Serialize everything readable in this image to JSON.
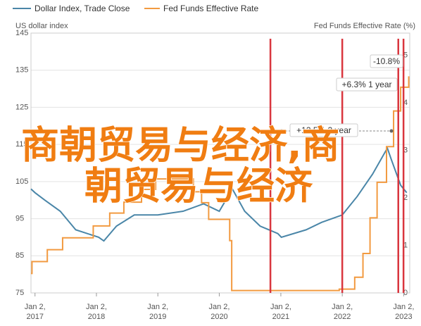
{
  "chart_data": {
    "type": "line",
    "legend": [
      "Dollar Index, Trade Close",
      "Fed Funds Effective Rate"
    ],
    "y_label": "US dollar index",
    "y2_label": "Fed Funds Effective Rate (%)",
    "xlim": [
      "2016-12-09",
      "2023-02-07"
    ],
    "xticks": [
      {
        "value": "2017-01-02",
        "label": "Jan 2, 2017"
      },
      {
        "value": "2018-01-02",
        "label": "Jan 2, 2018"
      },
      {
        "value": "2019-01-02",
        "label": "Jan 2, 2019"
      },
      {
        "value": "2020-01-02",
        "label": "Jan 2, 2020"
      },
      {
        "value": "2021-01-02",
        "label": "Jan 2, 2021"
      },
      {
        "value": "2022-01-02",
        "label": "Jan 2, 2022"
      },
      {
        "value": "2023-01-02",
        "label": "Jan 2, 2023"
      }
    ],
    "ylim": [
      75,
      145
    ],
    "yticks": [
      75,
      85,
      95,
      105,
      115,
      125,
      135,
      145
    ],
    "y2lim": [
      0,
      5.47
    ],
    "y2ticks": [
      0,
      1,
      2,
      3,
      4,
      5
    ],
    "grid": true,
    "series": [
      {
        "name": "Dollar Index, Trade Close",
        "color": "#4a86a8",
        "x": [
          "2016-12-09",
          "2017-01-02",
          "2017-03-01",
          "2017-06-01",
          "2017-09-01",
          "2018-01-15",
          "2018-02-15",
          "2018-05-01",
          "2018-08-15",
          "2019-01-02",
          "2019-06-01",
          "2019-10-01",
          "2020-01-02",
          "2020-03-20",
          "2020-06-01",
          "2020-09-01",
          "2020-12-15",
          "2021-01-05",
          "2021-06-01",
          "2021-09-01",
          "2022-01-02",
          "2022-04-01",
          "2022-07-01",
          "2022-09-27",
          "2022-10-20",
          "2022-12-15",
          "2023-01-20"
        ],
        "values": [
          103,
          102,
          100,
          97,
          92,
          90,
          89,
          93,
          96,
          96,
          97,
          99,
          97,
          103,
          97,
          93,
          91,
          90,
          92,
          94,
          96,
          101,
          107,
          114,
          111,
          104,
          102
        ]
      },
      {
        "name": "Fed Funds Effective Rate",
        "color": "#f29a40",
        "axis": "y2",
        "step": true,
        "x": [
          "2016-12-09",
          "2016-12-15",
          "2017-03-16",
          "2017-06-15",
          "2017-12-14",
          "2018-03-22",
          "2018-06-14",
          "2018-09-27",
          "2018-12-20",
          "2019-08-01",
          "2019-09-19",
          "2019-10-31",
          "2020-03-04",
          "2020-03-16",
          "2021-12-15",
          "2022-03-17",
          "2022-05-05",
          "2022-06-16",
          "2022-07-28",
          "2022-09-22",
          "2022-11-03",
          "2022-12-15",
          "2023-02-01"
        ],
        "values": [
          0.41,
          0.66,
          0.91,
          1.16,
          1.41,
          1.68,
          1.91,
          2.18,
          2.4,
          2.13,
          1.9,
          1.55,
          1.1,
          0.05,
          0.08,
          0.33,
          0.83,
          1.58,
          2.33,
          3.08,
          3.83,
          4.33,
          4.56
        ]
      }
    ],
    "vlines": [
      "2020-11-01",
      "2022-01-02",
      "2022-12-01",
      "2023-01-01"
    ],
    "vline_color": "#d9363e",
    "annotations": [
      "-10.8%",
      "+6.3% 1 year",
      "+12.5% 2 year"
    ],
    "overlay_text": [
      "商朝贸易与经济,商",
      "朝贸易与经济"
    ]
  }
}
